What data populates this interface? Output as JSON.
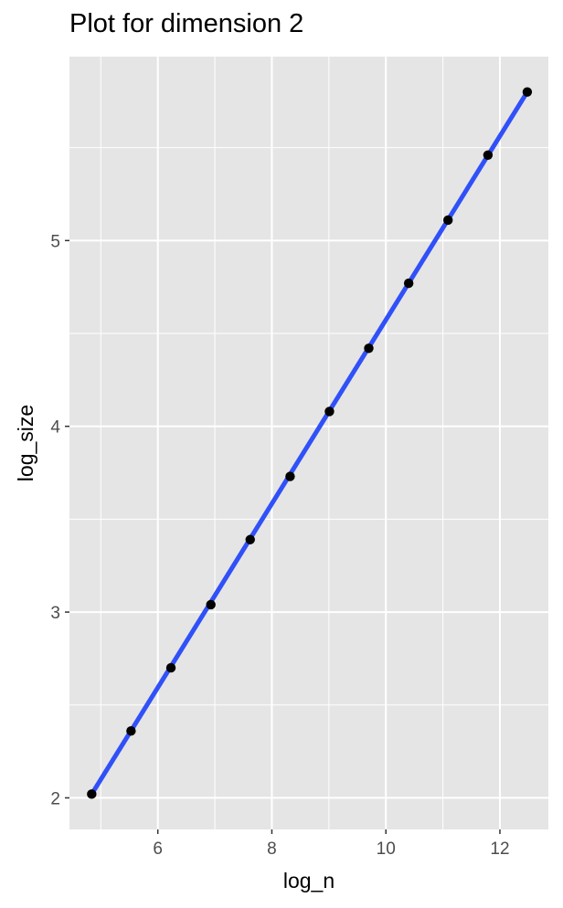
{
  "chart_data": {
    "type": "scatter",
    "title": "Plot for dimension 2",
    "xlabel": "log_n",
    "ylabel": "log_size",
    "xlim": [
      4.45,
      12.85
    ],
    "ylim": [
      1.83,
      5.99
    ],
    "xticks": [
      6,
      8,
      10,
      12
    ],
    "xtick_labels": [
      "6",
      "8",
      "10",
      "12"
    ],
    "yticks": [
      2,
      3,
      4,
      5
    ],
    "ytick_labels": [
      "2",
      "3",
      "4",
      "5"
    ],
    "grid": true,
    "panel_background": "#e5e5e5",
    "grid_color": "#ffffff",
    "point_color": "#000000",
    "line_color": "#3050f8",
    "x": [
      4.84,
      5.53,
      6.23,
      6.93,
      7.62,
      8.32,
      9.01,
      9.7,
      10.4,
      11.09,
      11.79,
      12.48
    ],
    "y": [
      2.02,
      2.36,
      2.7,
      3.04,
      3.39,
      3.73,
      4.08,
      4.42,
      4.77,
      5.11,
      5.46,
      5.8
    ],
    "fit_line": {
      "x": [
        4.84,
        12.48
      ],
      "y": [
        2.02,
        5.8
      ]
    }
  }
}
